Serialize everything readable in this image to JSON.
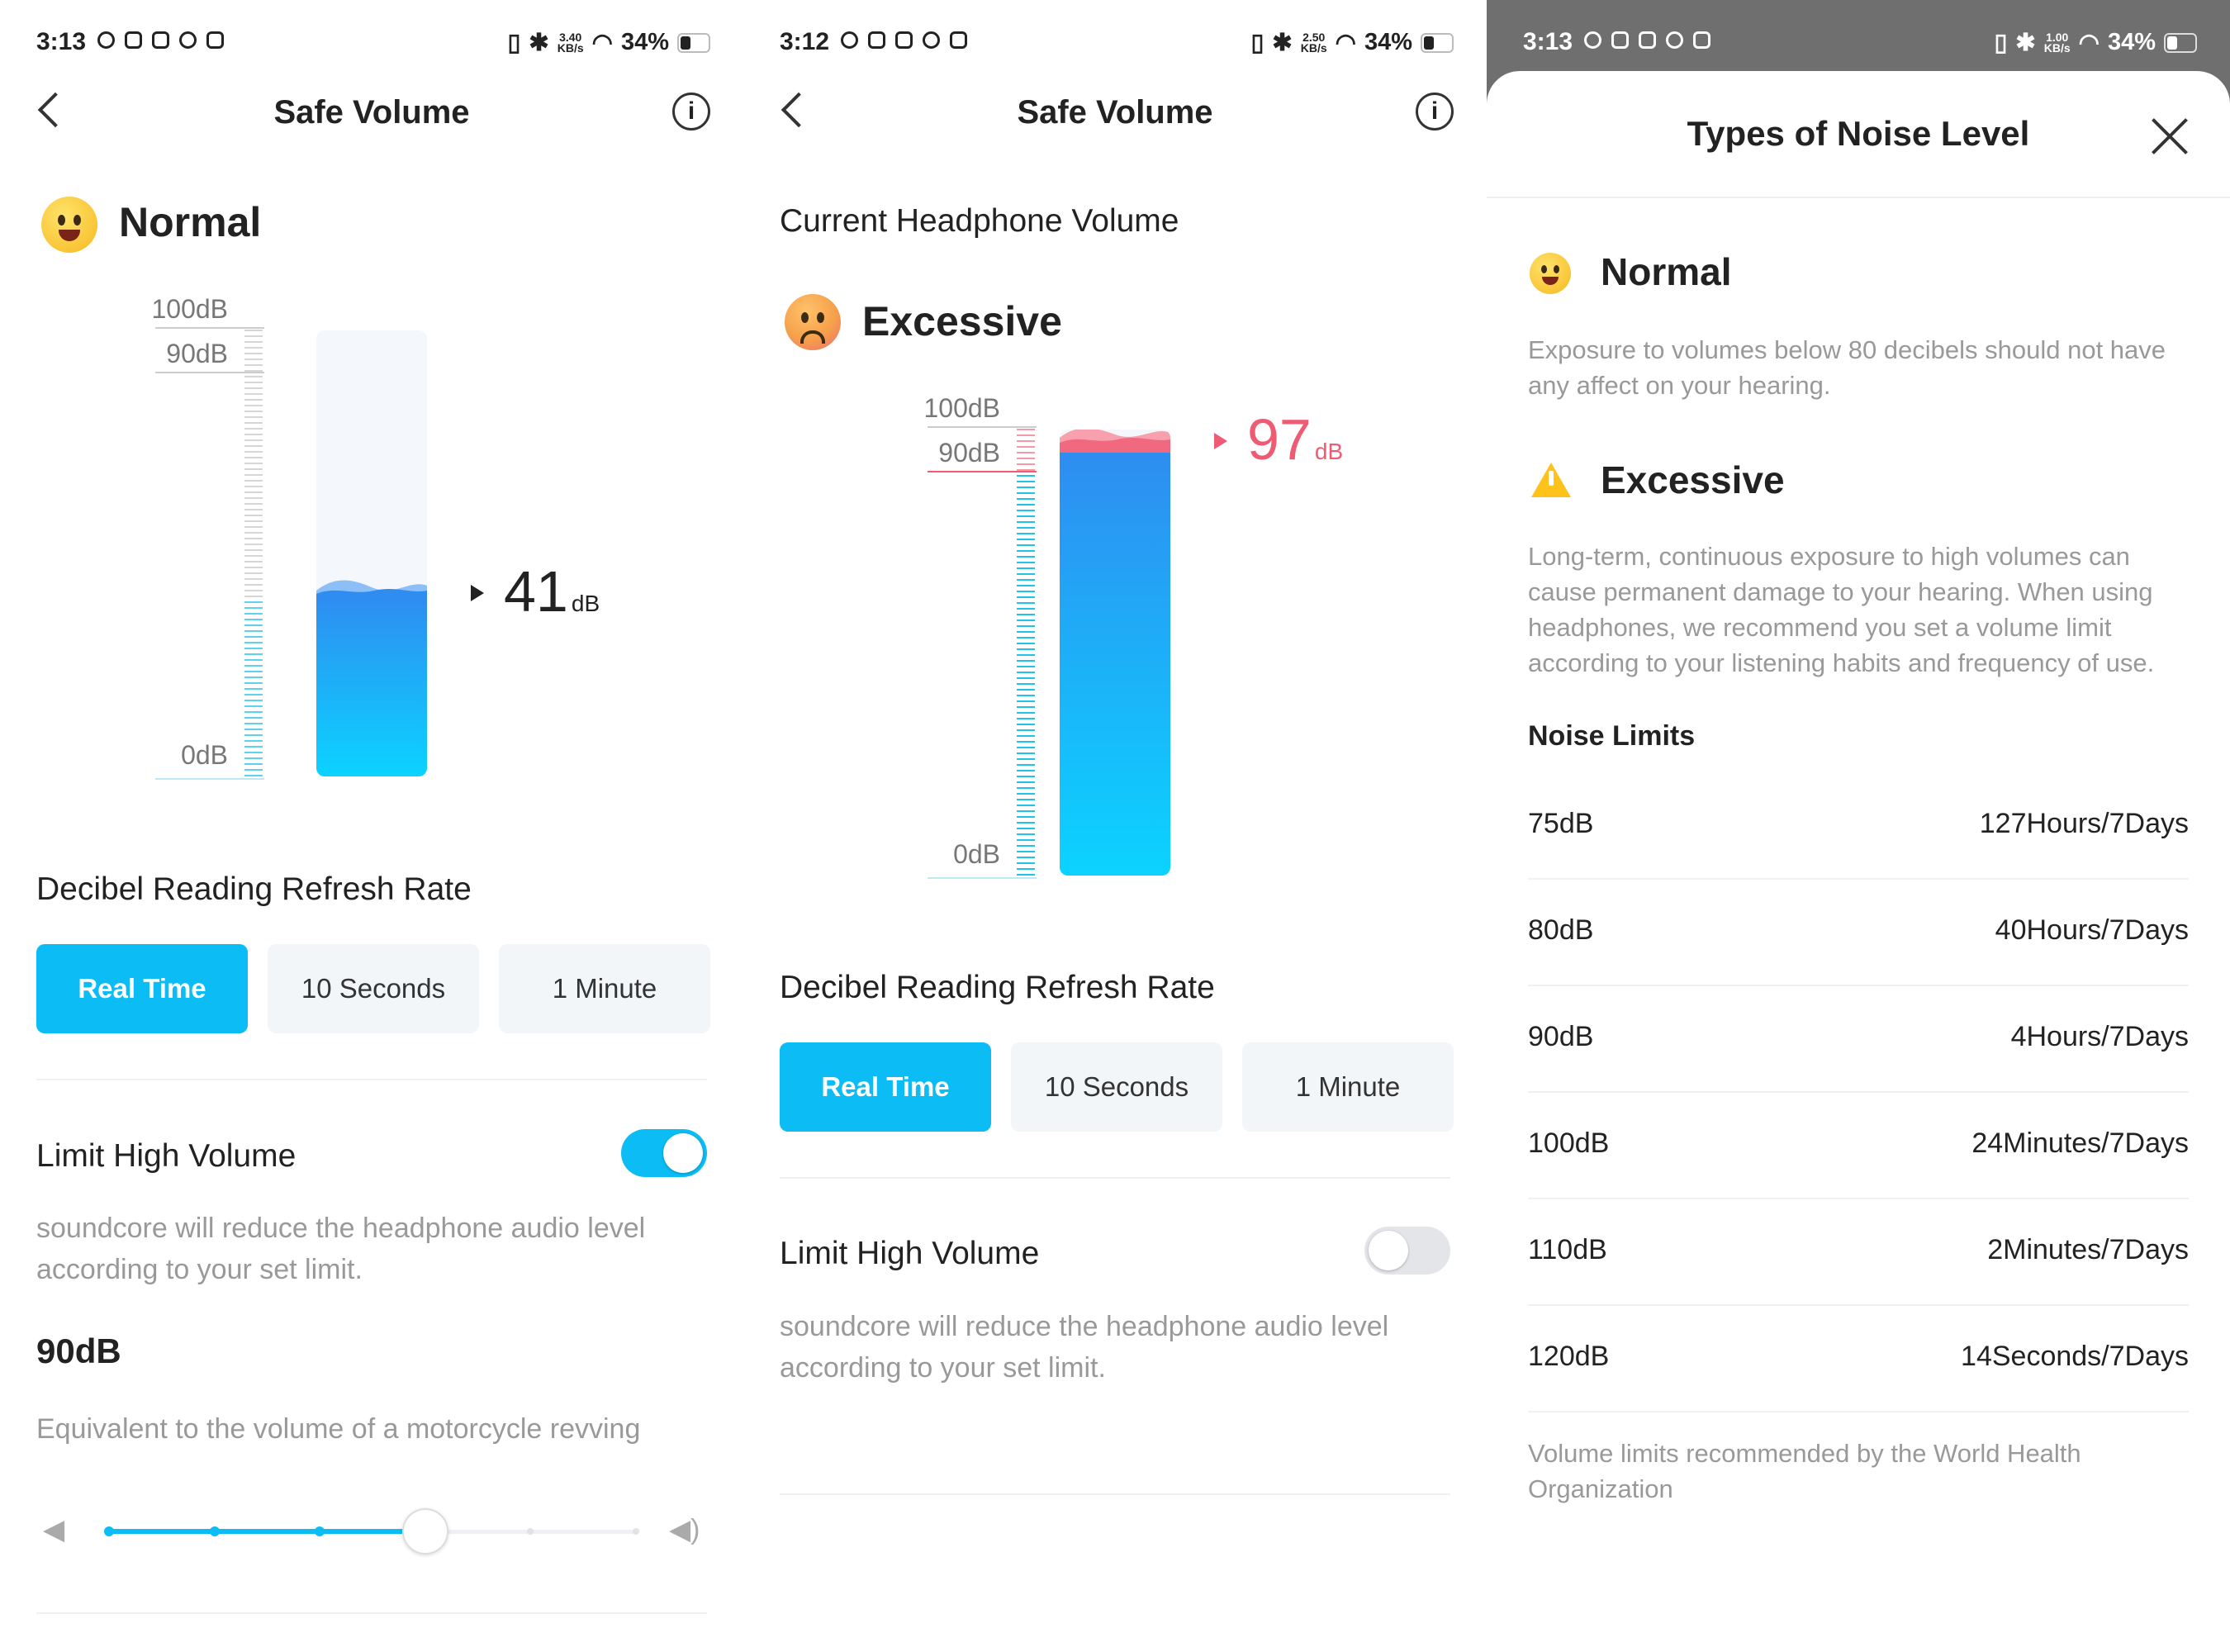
{
  "panel1": {
    "status_bar": {
      "time": "3:13",
      "net_top": "3.40",
      "net_bottom": "KB/s",
      "battery": "34%"
    },
    "header": {
      "title": "Safe Volume",
      "info_glyph": "i"
    },
    "status": {
      "label": "Normal",
      "emoji": "grinning-face-icon"
    },
    "scale": {
      "top": "100dB",
      "mid": "90dB",
      "bottom": "0dB"
    },
    "gauge": {
      "level_fraction": 0.41
    },
    "reading": {
      "value": "41",
      "unit": "dB"
    },
    "refresh": {
      "title": "Decibel Reading Refresh Rate",
      "options": [
        "Real Time",
        "10 Seconds",
        "1 Minute"
      ],
      "selected": 0
    },
    "limit": {
      "title": "Limit High Volume",
      "enabled": true,
      "desc": "soundcore will reduce the headphone audio level according to your set limit."
    },
    "limit_value": {
      "value": "90dB",
      "desc": "Equivalent to the volume of a motorcycle revving"
    },
    "slider": {
      "steps": 6,
      "position": 3
    }
  },
  "panel2": {
    "status_bar": {
      "time": "3:12",
      "net_top": "2.50",
      "net_bottom": "KB/s",
      "battery": "34%"
    },
    "header": {
      "title": "Safe Volume",
      "info_glyph": "i"
    },
    "subtitle": "Current Headphone Volume",
    "status": {
      "label": "Excessive",
      "emoji": "frowning-face-icon"
    },
    "scale": {
      "top": "100dB",
      "mid": "90dB",
      "bottom": "0dB"
    },
    "gauge": {
      "level_fraction": 0.97
    },
    "reading": {
      "value": "97",
      "unit": "dB"
    },
    "refresh": {
      "title": "Decibel Reading Refresh Rate",
      "options": [
        "Real Time",
        "10 Seconds",
        "1 Minute"
      ],
      "selected": 0
    },
    "limit": {
      "title": "Limit High Volume",
      "enabled": false,
      "desc": "soundcore will reduce the headphone audio level according to your set limit."
    }
  },
  "panel3": {
    "status_bar": {
      "time": "3:13",
      "net_top": "1.00",
      "net_bottom": "KB/s",
      "battery": "34%"
    },
    "sheet_title": "Types of Noise Level",
    "normal": {
      "label": "Normal",
      "desc": "Exposure to volumes below 80 decibels should not have any affect on your hearing."
    },
    "excessive": {
      "label": "Excessive",
      "desc": "Long-term, continuous exposure to high volumes can cause permanent damage to your hearing. When using headphones, we recommend you set a volume limit according to your listening habits and frequency of use."
    },
    "noise_limits_title": "Noise Limits",
    "noise_limits": [
      {
        "db": "75dB",
        "duration": "127Hours/7Days"
      },
      {
        "db": "80dB",
        "duration": "40Hours/7Days"
      },
      {
        "db": "90dB",
        "duration": "4Hours/7Days"
      },
      {
        "db": "100dB",
        "duration": "24Minutes/7Days"
      },
      {
        "db": "110dB",
        "duration": "2Minutes/7Days"
      },
      {
        "db": "120dB",
        "duration": "14Seconds/7Days"
      }
    ],
    "footnote": "Volume limits recommended by the World Health Organization"
  },
  "colors": {
    "accent": "#0bbcf5",
    "excessive": "#ee5b73",
    "warning": "#ffc21a"
  }
}
